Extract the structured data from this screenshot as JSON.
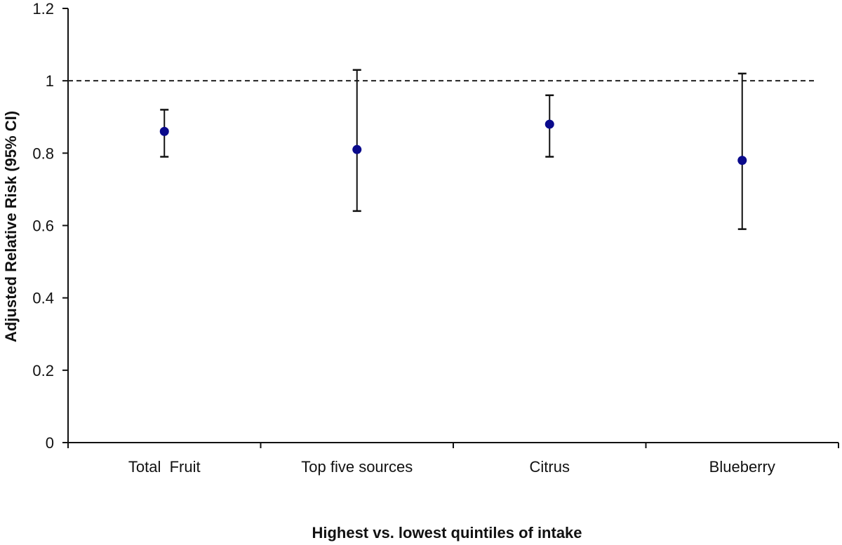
{
  "chart_data": {
    "type": "scatter",
    "subtype": "point-with-error-bars",
    "title": "",
    "xlabel": "Highest vs. lowest quintiles of intake",
    "ylabel": "Adjusted Relative Risk (95% CI)",
    "categories": [
      "Total  Fruit",
      "Top five sources",
      "Citrus",
      "Blueberry"
    ],
    "series": [
      {
        "values": [
          0.86,
          0.81,
          0.88,
          0.78
        ],
        "ci_lower": [
          0.79,
          0.64,
          0.79,
          0.59
        ],
        "ci_upper": [
          0.92,
          1.03,
          0.96,
          1.02
        ]
      }
    ],
    "ylim": [
      0,
      1.2
    ],
    "yticks": [
      0,
      0.2,
      0.4,
      0.6,
      0.8,
      1,
      1.2
    ],
    "ytick_labels": [
      "0",
      "0.2",
      "0.4",
      "0.6",
      "0.8",
      "1",
      "1.2"
    ],
    "reference_line": 1,
    "grid": false,
    "legend": "none",
    "colors": {
      "point": "#0a0a8c",
      "axis": "#111111",
      "reference": "#222222"
    }
  }
}
